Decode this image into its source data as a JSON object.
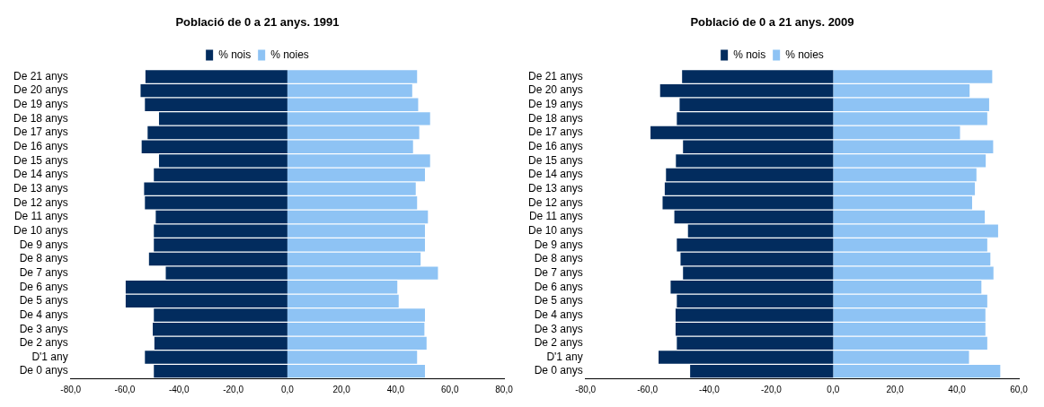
{
  "chart_data": [
    {
      "type": "bar",
      "orientation": "horizontal",
      "stacked": true,
      "title": "Població de 0 a 21 anys. 1991",
      "categories": [
        "De 21 anys",
        "De 20 anys",
        "De 19 anys",
        "De 18 anys",
        "De 17 anys",
        "De 16 anys",
        "De 15 anys",
        "De 14 anys",
        "De 13 anys",
        "De 12 anys",
        "De 11 anys",
        "De 10 anys",
        "De 9 anys",
        "De 8 anys",
        "De 7 anys",
        "De 6 anys",
        "De 5 anys",
        "De 4 anys",
        "De 3 anys",
        "De 2 anys",
        "D'1 any",
        "De 0 anys"
      ],
      "series": [
        {
          "name": "% nois",
          "color": "#022c5e",
          "values": [
            -52.4,
            -54.2,
            -52.6,
            -47.4,
            -51.6,
            -53.8,
            -47.4,
            -49.3,
            -52.9,
            -52.6,
            -48.6,
            -49.3,
            -49.3,
            -51.1,
            -44.9,
            -59.7,
            -59.7,
            -49.3,
            -49.7,
            -49.1,
            -52.6,
            -49.3
          ]
        },
        {
          "name": "% noies",
          "color": "#8ec3f4",
          "values": [
            47.9,
            46.1,
            48.3,
            52.7,
            48.7,
            46.4,
            52.7,
            50.8,
            47.4,
            47.9,
            51.9,
            50.8,
            50.8,
            49.2,
            55.6,
            40.6,
            41.1,
            50.8,
            50.6,
            51.4,
            47.9,
            50.8
          ]
        }
      ],
      "xlim": [
        -80,
        80
      ],
      "xticks": [
        {
          "value": -80,
          "label": "-80,0"
        },
        {
          "value": -60,
          "label": "-60,0"
        },
        {
          "value": -40,
          "label": "-40,0"
        },
        {
          "value": -20,
          "label": "-20,0"
        },
        {
          "value": 0,
          "label": "0,0"
        },
        {
          "value": 20,
          "label": "20,0"
        },
        {
          "value": 40,
          "label": "40,0"
        },
        {
          "value": 60,
          "label": "60,0"
        },
        {
          "value": 80,
          "label": "80,0"
        }
      ],
      "grid": false,
      "legend": "top"
    },
    {
      "type": "bar",
      "orientation": "horizontal",
      "stacked": true,
      "title": "Població de 0 a 21 anys. 2009",
      "categories": [
        "De 21 anys",
        "De 20 anys",
        "De 19 anys",
        "De 18 anys",
        "De 17 anys",
        "De 16 anys",
        "De 15 anys",
        "De 14 anys",
        "De 13 anys",
        "De 12 anys",
        "De 11 anys",
        "De 10 anys",
        "De 9 anys",
        "De 8 anys",
        "De 7 anys",
        "De 6 anys",
        "De 5 anys",
        "De 4 anys",
        "De 3 anys",
        "De 2 anys",
        "D'1 any",
        "De 0 anys"
      ],
      "series": [
        {
          "name": "% nois",
          "color": "#022c5e",
          "values": [
            -48.8,
            -55.9,
            -49.6,
            -50.5,
            -59.0,
            -48.5,
            -50.8,
            -54.0,
            -54.4,
            -55.1,
            -51.3,
            -46.9,
            -50.5,
            -49.3,
            -48.5,
            -52.5,
            -50.5,
            -50.9,
            -50.9,
            -50.5,
            -56.4,
            -46.2
          ]
        },
        {
          "name": "% noies",
          "color": "#8ec3f4",
          "values": [
            51.4,
            44.1,
            50.4,
            49.8,
            41.0,
            51.7,
            49.3,
            46.3,
            45.8,
            44.9,
            49.0,
            53.3,
            49.8,
            50.8,
            51.8,
            47.9,
            49.8,
            49.2,
            49.2,
            49.8,
            43.9,
            54.0
          ]
        }
      ],
      "xlim": [
        -80,
        60
      ],
      "xticks": [
        {
          "value": -80,
          "label": "-80,0"
        },
        {
          "value": -60,
          "label": "-60,0"
        },
        {
          "value": -40,
          "label": "-40,0"
        },
        {
          "value": -20,
          "label": "-20,0"
        },
        {
          "value": 0,
          "label": "0,0"
        },
        {
          "value": 20,
          "label": "20,0"
        },
        {
          "value": 40,
          "label": "40,0"
        },
        {
          "value": 60,
          "label": "60,0"
        }
      ],
      "grid": false,
      "legend": "top"
    }
  ]
}
